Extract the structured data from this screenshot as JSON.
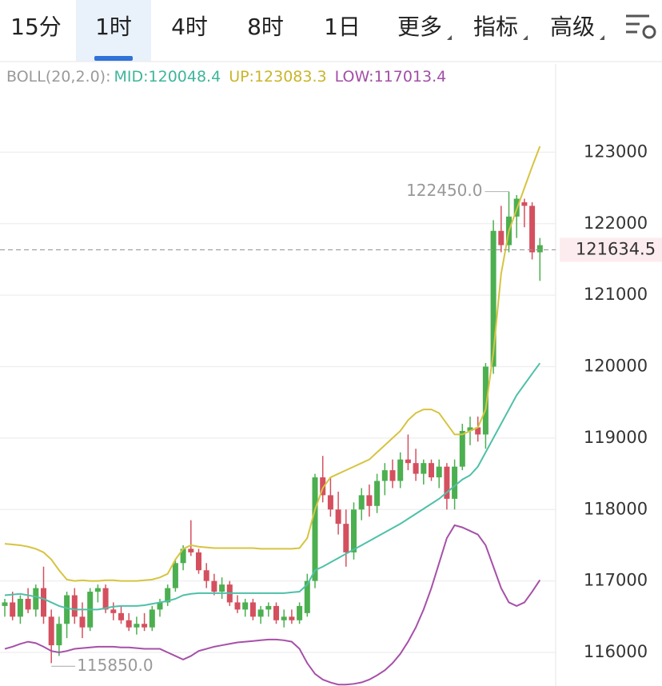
{
  "toolbar": {
    "tabs": [
      "15分",
      "1时",
      "4时",
      "8时",
      "1日",
      "更多",
      "指标",
      "高级"
    ],
    "selected": "1时"
  },
  "chart_data": {
    "type": "candlestick",
    "indicator": {
      "label": "BOLL(20,2.0):",
      "items": [
        {
          "text": "MID:120048.4",
          "color": "#3fb59b"
        },
        {
          "text": "UP:123083.3",
          "color": "#c9b52a"
        },
        {
          "text": "LOW:117013.4",
          "color": "#a24ea6"
        }
      ]
    },
    "up_color": "#4caf50",
    "down_color": "#d4505f",
    "open": [
      116650,
      116700,
      116500,
      116750,
      116600,
      116900,
      116500,
      116100,
      116400,
      116800,
      116500,
      116350,
      116850,
      116900,
      116600,
      116550,
      116450,
      116350,
      116400,
      116350,
      116600,
      116700,
      116900,
      117250,
      117450,
      117400,
      117150,
      117000,
      116850,
      116950,
      116700,
      116600,
      116700,
      116500,
      116600,
      116650,
      116450,
      116500,
      116450,
      116550,
      117000,
      118450,
      118200,
      118000,
      117800,
      117400,
      118000,
      118200,
      118050,
      118400,
      118550,
      118400,
      118700,
      118650,
      118500,
      118650,
      118450,
      118600,
      118150,
      118600,
      119100,
      119150,
      119050,
      120000,
      121900,
      121700,
      122100,
      122300,
      122250,
      121600
    ],
    "high": [
      116750,
      116850,
      116800,
      116900,
      116950,
      117200,
      116600,
      116500,
      116850,
      116900,
      116700,
      116900,
      116950,
      116950,
      116700,
      116650,
      116550,
      116500,
      116550,
      116650,
      116750,
      116950,
      117300,
      117500,
      117850,
      117450,
      117250,
      117100,
      117050,
      117000,
      116800,
      116750,
      116750,
      116650,
      116700,
      116700,
      116600,
      116600,
      116700,
      117100,
      118500,
      118750,
      118450,
      118250,
      118000,
      118100,
      118300,
      118350,
      118500,
      118650,
      118700,
      118800,
      119050,
      118850,
      118700,
      118700,
      118700,
      118650,
      118700,
      119200,
      119300,
      119300,
      120050,
      122050,
      122250,
      122450,
      122400,
      122350,
      122300,
      121800
    ],
    "low": [
      116500,
      116450,
      116400,
      116550,
      116500,
      116400,
      115850,
      115950,
      116200,
      116400,
      116200,
      116300,
      116700,
      116550,
      116450,
      116400,
      116300,
      116250,
      116300,
      116300,
      116500,
      116650,
      116850,
      117150,
      117350,
      117100,
      116900,
      116800,
      116750,
      116650,
      116550,
      116500,
      116450,
      116400,
      116500,
      116400,
      116350,
      116400,
      116400,
      116500,
      116900,
      118100,
      117900,
      117650,
      117200,
      117300,
      117850,
      117900,
      117950,
      118200,
      118300,
      118300,
      118550,
      118400,
      118350,
      118400,
      118300,
      118000,
      118000,
      118550,
      118900,
      118950,
      118850,
      119900,
      121600,
      121600,
      121800,
      121950,
      121500,
      121200
    ],
    "close": [
      116700,
      116500,
      116750,
      116600,
      116900,
      116500,
      116100,
      116400,
      116800,
      116500,
      116350,
      116850,
      116900,
      116600,
      116550,
      116450,
      116350,
      116400,
      116350,
      116600,
      116700,
      116900,
      117250,
      117450,
      117400,
      117150,
      117000,
      116850,
      116950,
      116700,
      116600,
      116700,
      116500,
      116600,
      116650,
      116450,
      116500,
      116450,
      116650,
      117000,
      118450,
      118200,
      118000,
      117800,
      117400,
      118000,
      118200,
      118050,
      118400,
      118550,
      118400,
      118700,
      118650,
      118500,
      118650,
      118450,
      118600,
      118150,
      118600,
      119100,
      119150,
      119050,
      120000,
      121900,
      121700,
      122100,
      122350,
      122250,
      121600,
      121700
    ],
    "series": [
      {
        "name": "UP",
        "color": "#d6c440",
        "values": [
          117520,
          117510,
          117500,
          117480,
          117450,
          117400,
          117300,
          117150,
          117020,
          117000,
          117010,
          117000,
          117000,
          117010,
          117010,
          117000,
          117000,
          117000,
          117010,
          117020,
          117050,
          117100,
          117300,
          117450,
          117500,
          117480,
          117470,
          117460,
          117460,
          117460,
          117460,
          117460,
          117460,
          117450,
          117450,
          117450,
          117450,
          117450,
          117460,
          117600,
          118000,
          118300,
          118450,
          118500,
          118550,
          118600,
          118650,
          118700,
          118800,
          118900,
          119000,
          119100,
          119250,
          119350,
          119400,
          119400,
          119350,
          119200,
          119050,
          119050,
          119100,
          119150,
          119400,
          120200,
          121300,
          121900,
          122200,
          122500,
          122800,
          123083.3
        ]
      },
      {
        "name": "MID",
        "color": "#4fc0a8",
        "values": [
          116800,
          116810,
          116820,
          116800,
          116780,
          116750,
          116700,
          116650,
          116620,
          116600,
          116600,
          116600,
          116600,
          116620,
          116640,
          116650,
          116650,
          116650,
          116660,
          116680,
          116700,
          116720,
          116750,
          116800,
          116820,
          116830,
          116830,
          116830,
          116830,
          116830,
          116830,
          116830,
          116830,
          116830,
          116830,
          116830,
          116830,
          116840,
          116850,
          116950,
          117150,
          117200,
          117260,
          117320,
          117380,
          117440,
          117500,
          117560,
          117620,
          117680,
          117740,
          117800,
          117870,
          117940,
          118010,
          118080,
          118150,
          118240,
          118330,
          118420,
          118480,
          118600,
          118800,
          119000,
          119200,
          119400,
          119600,
          119750,
          119900,
          120048.4
        ]
      },
      {
        "name": "LOW",
        "color": "#a650a8",
        "values": [
          116050,
          116080,
          116120,
          116150,
          116130,
          116080,
          116020,
          116000,
          116020,
          116050,
          116060,
          116070,
          116080,
          116080,
          116080,
          116070,
          116070,
          116060,
          116050,
          116050,
          116050,
          116000,
          115950,
          115900,
          115950,
          116020,
          116050,
          116080,
          116100,
          116120,
          116140,
          116150,
          116160,
          116170,
          116180,
          116180,
          116170,
          116150,
          116050,
          115850,
          115700,
          115620,
          115580,
          115550,
          115550,
          115560,
          115580,
          115620,
          115680,
          115750,
          115850,
          115980,
          116150,
          116350,
          116600,
          116900,
          117250,
          117600,
          117780,
          117750,
          117700,
          117650,
          117500,
          117200,
          116900,
          116700,
          116650,
          116700,
          116850,
          117013.4
        ]
      }
    ],
    "ylim": [
      115530,
      123900
    ],
    "yticks": [
      116000,
      117000,
      118000,
      119000,
      120000,
      121000,
      122000,
      123000
    ],
    "grid": true,
    "last_price": 121634.5,
    "annotations": [
      {
        "value": 122450,
        "label": "122450.0",
        "index": 65
      },
      {
        "value": 115850,
        "label": "115850.0",
        "index": 6
      }
    ]
  }
}
